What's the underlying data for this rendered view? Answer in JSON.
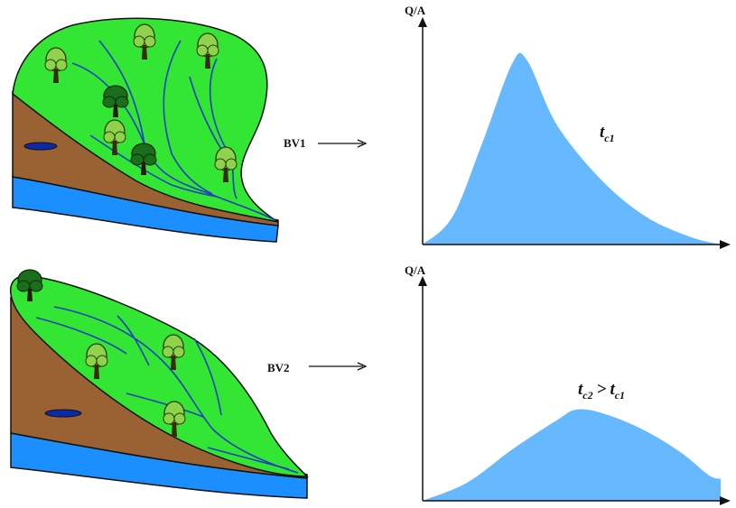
{
  "basins": [
    {
      "id": "bv1",
      "label": "BV1",
      "y_axis_label": "Q/A",
      "tc_main": "t",
      "tc_sub": "c1",
      "relation": "",
      "tc2_main": "",
      "tc2_sub": ""
    },
    {
      "id": "bv2",
      "label": "BV2",
      "y_axis_label": "Q/A",
      "tc_main": "t",
      "tc_sub": "c2",
      "relation": ">",
      "tc2_main": "t",
      "tc2_sub": "c1"
    }
  ],
  "colors": {
    "vegetation": "#33e633",
    "soil": "#9a6233",
    "water": "#1c8fff",
    "stream": "#1f3fbf",
    "lake": "#0a2aa8",
    "hydrograph_fill": "#66b8ff",
    "axis": "#111111",
    "tree_light": "#8fd24b",
    "tree_dark": "#1b6e1b"
  },
  "icons": {
    "tree": "tree-icon",
    "arrow": "right-arrow-icon"
  },
  "chart_data": [
    {
      "type": "area",
      "series": [
        {
          "values": [
            0.0,
            0.15,
            0.55,
            0.98,
            1.0,
            0.65,
            0.35,
            0.15,
            0.04,
            0.0
          ]
        }
      ],
      "x": [
        0,
        0.1,
        0.2,
        0.3,
        0.35,
        0.45,
        0.6,
        0.75,
        0.9,
        1.0
      ],
      "ylabel": "Q/A",
      "xlabel": "",
      "ylim": [
        0,
        1.15
      ]
    },
    {
      "type": "area",
      "series": [
        {
          "values": [
            0.0,
            0.1,
            0.28,
            0.44,
            0.5,
            0.47,
            0.38,
            0.26,
            0.14,
            0.12
          ]
        }
      ],
      "x": [
        0,
        0.15,
        0.3,
        0.45,
        0.52,
        0.62,
        0.75,
        0.87,
        0.96,
        1.0
      ],
      "ylabel": "Q/A",
      "xlabel": "",
      "ylim": [
        0,
        1.15
      ]
    }
  ]
}
